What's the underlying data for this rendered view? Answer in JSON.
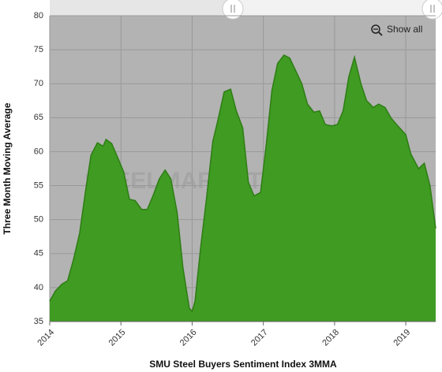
{
  "chart_data": {
    "type": "area",
    "x_label": "SMU Steel Buyers Sentiment Index 3MMA",
    "y_label": "Three Month Moving Average",
    "button": "Show all",
    "watermark": "STEELMARKETUPDATE",
    "color": "#3f9b22",
    "line_color": "#2e7d14",
    "grid": true,
    "xlim": [
      2014,
      2019.42
    ],
    "xticks": [
      2014,
      2015,
      2016,
      2017,
      2018,
      2019
    ],
    "ylim": [
      35,
      80
    ],
    "yticks": [
      35,
      40,
      45,
      50,
      55,
      60,
      65,
      70,
      75,
      80
    ],
    "x": [
      2014.0,
      2014.08,
      2014.17,
      2014.25,
      2014.33,
      2014.42,
      2014.5,
      2014.58,
      2014.67,
      2014.75,
      2014.79,
      2014.87,
      2014.96,
      2015.04,
      2015.12,
      2015.2,
      2015.29,
      2015.37,
      2015.45,
      2015.54,
      2015.62,
      2015.7,
      2015.79,
      2015.87,
      2015.96,
      2016.0,
      2016.04,
      2016.12,
      2016.2,
      2016.29,
      2016.37,
      2016.45,
      2016.54,
      2016.62,
      2016.71,
      2016.79,
      2016.87,
      2016.96,
      2017.04,
      2017.12,
      2017.2,
      2017.29,
      2017.37,
      2017.45,
      2017.54,
      2017.62,
      2017.71,
      2017.79,
      2017.87,
      2017.96,
      2018.04,
      2018.12,
      2018.2,
      2018.28,
      2018.37,
      2018.45,
      2018.5,
      2018.54,
      2018.62,
      2018.71,
      2018.79,
      2018.87,
      2018.94,
      2019.0,
      2019.07,
      2019.18,
      2019.26,
      2019.34,
      2019.42
    ],
    "values": [
      38,
      39.5,
      40.5,
      41,
      44,
      48,
      54,
      59.5,
      61.3,
      60.8,
      61.8,
      61.2,
      59,
      57,
      53,
      52.8,
      51.5,
      51.5,
      53.5,
      56,
      57.3,
      56,
      51,
      43,
      37,
      36.5,
      38,
      46,
      53,
      61.5,
      65,
      68.8,
      69.2,
      66,
      63.5,
      55.5,
      53.5,
      54,
      61,
      69,
      73,
      74.2,
      73.8,
      72,
      70,
      67,
      65.8,
      66,
      64,
      63.8,
      64,
      66,
      71,
      73.9,
      70,
      67.5,
      67,
      66.5,
      67,
      66.5,
      65,
      64,
      63.2,
      62.5,
      59.7,
      57.5,
      58.3,
      55,
      48.7
    ]
  }
}
